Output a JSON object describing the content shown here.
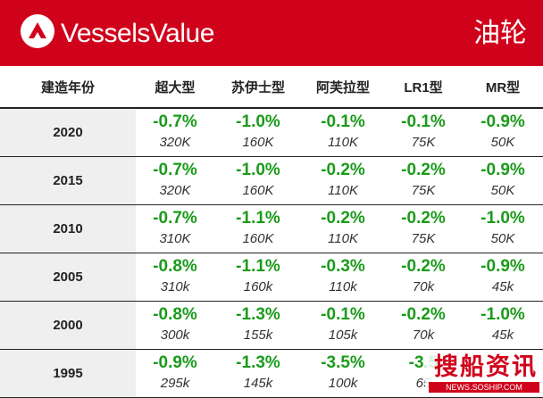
{
  "header": {
    "brand": "VesselsValue",
    "title": "油轮",
    "brand_color": "#d0021b",
    "logo_icon": "vesselsvalue-logo-icon"
  },
  "table": {
    "columns": [
      "建造年份",
      "超大型",
      "苏伊士型",
      "阿芙拉型",
      "LR1型",
      "MR型"
    ],
    "rows": [
      {
        "year": "2020",
        "cells": [
          {
            "pct": "-0.7%",
            "val": "320K"
          },
          {
            "pct": "-1.0%",
            "val": "160K"
          },
          {
            "pct": "-0.1%",
            "val": "110K"
          },
          {
            "pct": "-0.1%",
            "val": "75K"
          },
          {
            "pct": "-0.9%",
            "val": "50K"
          }
        ]
      },
      {
        "year": "2015",
        "cells": [
          {
            "pct": "-0.7%",
            "val": "320K"
          },
          {
            "pct": "-1.0%",
            "val": "160K"
          },
          {
            "pct": "-0.2%",
            "val": "110K"
          },
          {
            "pct": "-0.2%",
            "val": "75K"
          },
          {
            "pct": "-0.9%",
            "val": "50K"
          }
        ]
      },
      {
        "year": "2010",
        "cells": [
          {
            "pct": "-0.7%",
            "val": "310K"
          },
          {
            "pct": "-1.1%",
            "val": "160K"
          },
          {
            "pct": "-0.2%",
            "val": "110K"
          },
          {
            "pct": "-0.2%",
            "val": "75K"
          },
          {
            "pct": "-1.0%",
            "val": "50K"
          }
        ]
      },
      {
        "year": "2005",
        "cells": [
          {
            "pct": "-0.8%",
            "val": "310k"
          },
          {
            "pct": "-1.1%",
            "val": "160k"
          },
          {
            "pct": "-0.3%",
            "val": "110k"
          },
          {
            "pct": "-0.2%",
            "val": "70k"
          },
          {
            "pct": "-0.9%",
            "val": "45k"
          }
        ]
      },
      {
        "year": "2000",
        "cells": [
          {
            "pct": "-0.8%",
            "val": "300k"
          },
          {
            "pct": "-1.3%",
            "val": "155k"
          },
          {
            "pct": "-0.1%",
            "val": "105k"
          },
          {
            "pct": "-0.2%",
            "val": "70k"
          },
          {
            "pct": "-1.0%",
            "val": "45k"
          }
        ]
      },
      {
        "year": "1995",
        "cells": [
          {
            "pct": "-0.9%",
            "val": "295k"
          },
          {
            "pct": "-1.3%",
            "val": "145k"
          },
          {
            "pct": "-3.5%",
            "val": "100k"
          },
          {
            "pct": "-3.5",
            "val": "65"
          },
          {
            "pct": "",
            "val": ""
          }
        ]
      }
    ]
  },
  "watermark": {
    "text": "搜船资讯",
    "url": "NEWS.SOSHIP.COM"
  }
}
